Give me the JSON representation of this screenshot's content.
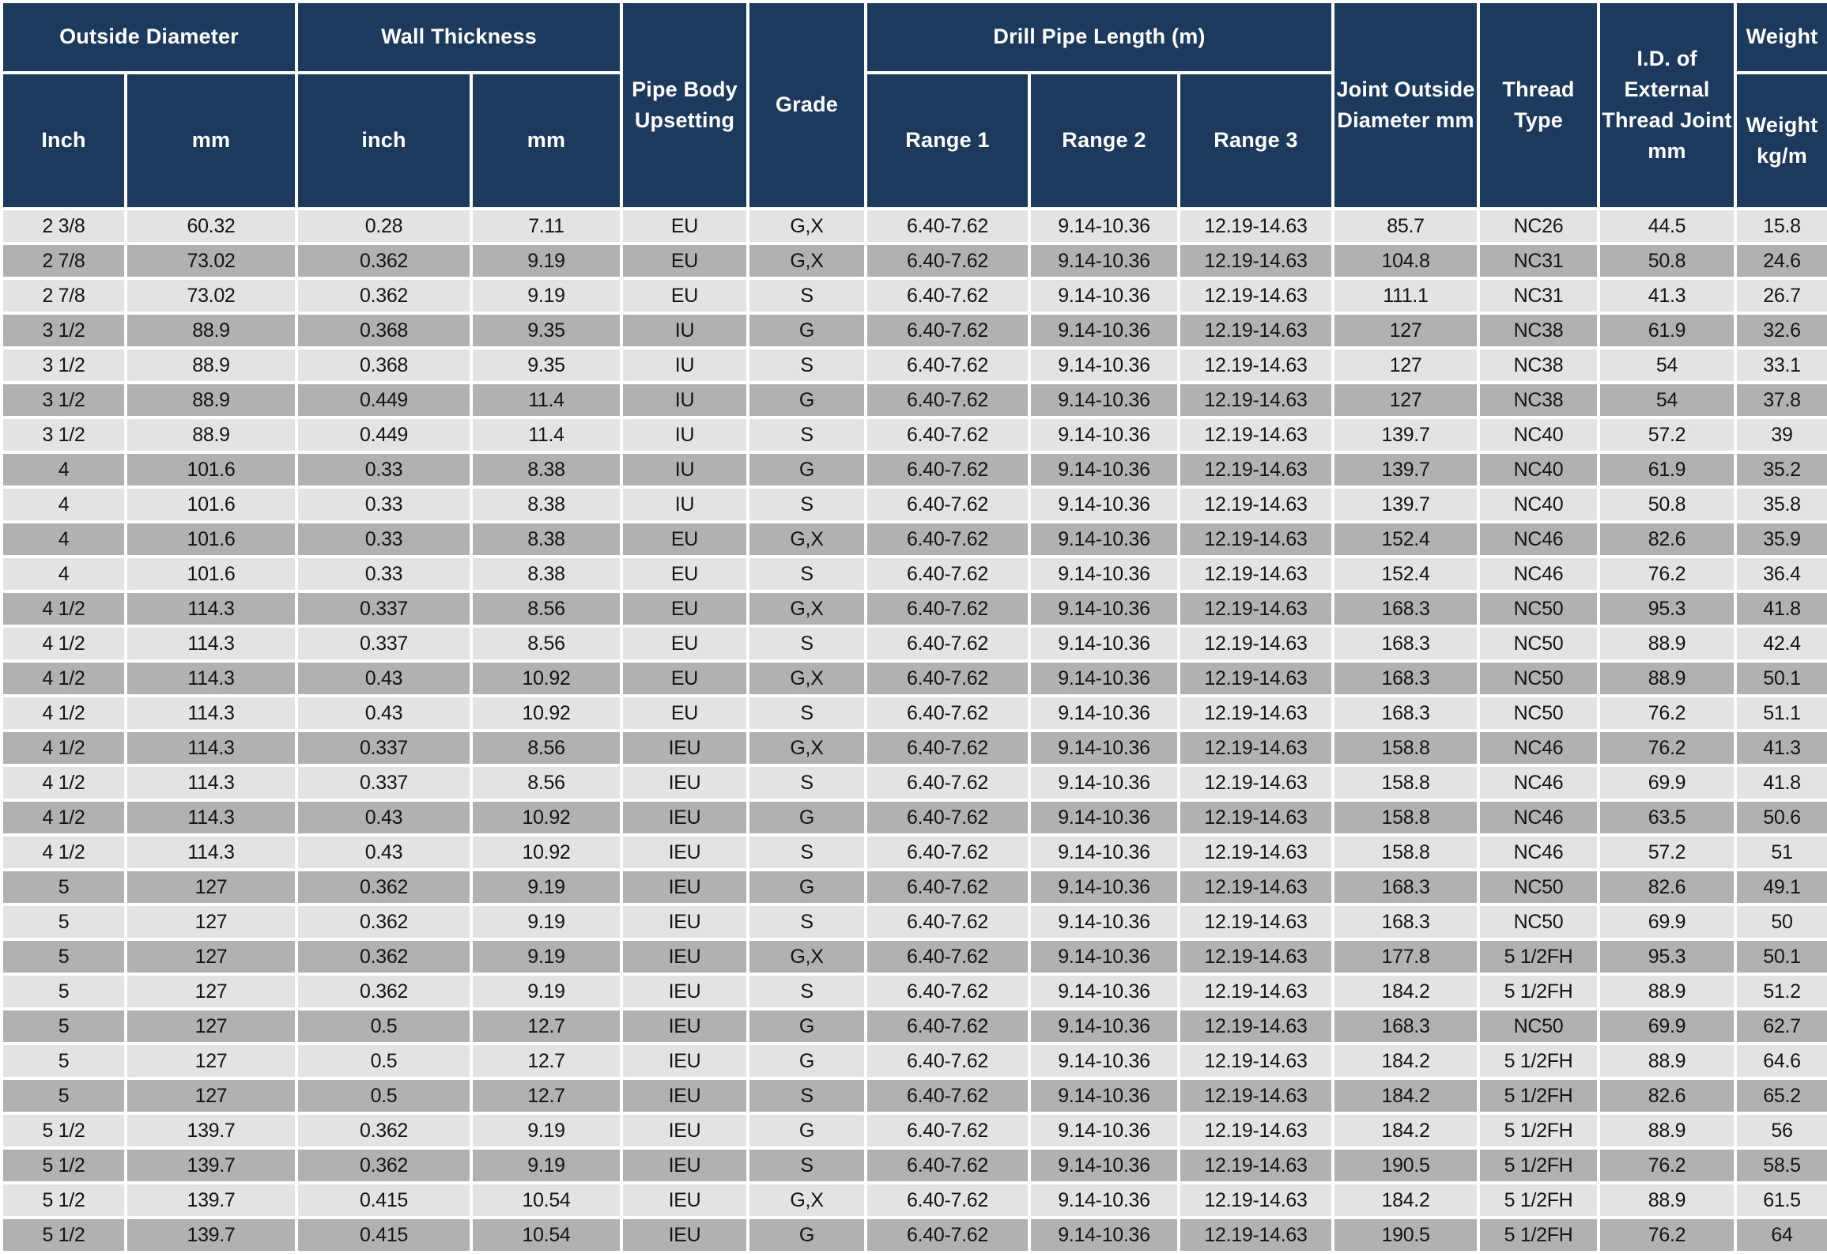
{
  "colors": {
    "header_bg": "#1d3a5c",
    "header_text": "#ffffff",
    "row_light": "#e3e3e3",
    "row_dark": "#b1b1b1",
    "gridline": "#ffffff",
    "cell_text": "#141414"
  },
  "table": {
    "header": {
      "outside_diameter": "Outside Diameter",
      "outside_diameter_sub": [
        "Inch",
        "mm"
      ],
      "wall_thickness": "Wall Thickness",
      "wall_thickness_sub": [
        "inch",
        "mm"
      ],
      "pipe_body_upsetting": "Pipe Body Upsetting",
      "grade": "Grade",
      "drill_pipe_length": "Drill Pipe Length (m)",
      "drill_pipe_length_sub": [
        "Range 1",
        "Range 2",
        "Range 3"
      ],
      "joint_outside_diameter": "Joint Outside Diameter mm",
      "thread_type": "Thread Type",
      "id_external_thread": "I.D. of External Thread Joint mm",
      "weight_group": "Weight",
      "weight_sub": "Weight kg/m"
    },
    "rows": [
      [
        "2 3/8",
        "60.32",
        "0.28",
        "7.11",
        "EU",
        "G,X",
        "6.40-7.62",
        "9.14-10.36",
        "12.19-14.63",
        "85.7",
        "NC26",
        "44.5",
        "15.8"
      ],
      [
        "2 7/8",
        "73.02",
        "0.362",
        "9.19",
        "EU",
        "G,X",
        "6.40-7.62",
        "9.14-10.36",
        "12.19-14.63",
        "104.8",
        "NC31",
        "50.8",
        "24.6"
      ],
      [
        "2 7/8",
        "73.02",
        "0.362",
        "9.19",
        "EU",
        "S",
        "6.40-7.62",
        "9.14-10.36",
        "12.19-14.63",
        "111.1",
        "NC31",
        "41.3",
        "26.7"
      ],
      [
        "3 1/2",
        "88.9",
        "0.368",
        "9.35",
        "IU",
        "G",
        "6.40-7.62",
        "9.14-10.36",
        "12.19-14.63",
        "127",
        "NC38",
        "61.9",
        "32.6"
      ],
      [
        "3 1/2",
        "88.9",
        "0.368",
        "9.35",
        "IU",
        "S",
        "6.40-7.62",
        "9.14-10.36",
        "12.19-14.63",
        "127",
        "NC38",
        "54",
        "33.1"
      ],
      [
        "3 1/2",
        "88.9",
        "0.449",
        "11.4",
        "IU",
        "G",
        "6.40-7.62",
        "9.14-10.36",
        "12.19-14.63",
        "127",
        "NC38",
        "54",
        "37.8"
      ],
      [
        "3 1/2",
        "88.9",
        "0.449",
        "11.4",
        "IU",
        "S",
        "6.40-7.62",
        "9.14-10.36",
        "12.19-14.63",
        "139.7",
        "NC40",
        "57.2",
        "39"
      ],
      [
        "4",
        "101.6",
        "0.33",
        "8.38",
        "IU",
        "G",
        "6.40-7.62",
        "9.14-10.36",
        "12.19-14.63",
        "139.7",
        "NC40",
        "61.9",
        "35.2"
      ],
      [
        "4",
        "101.6",
        "0.33",
        "8.38",
        "IU",
        "S",
        "6.40-7.62",
        "9.14-10.36",
        "12.19-14.63",
        "139.7",
        "NC40",
        "50.8",
        "35.8"
      ],
      [
        "4",
        "101.6",
        "0.33",
        "8.38",
        "EU",
        "G,X",
        "6.40-7.62",
        "9.14-10.36",
        "12.19-14.63",
        "152.4",
        "NC46",
        "82.6",
        "35.9"
      ],
      [
        "4",
        "101.6",
        "0.33",
        "8.38",
        "EU",
        "S",
        "6.40-7.62",
        "9.14-10.36",
        "12.19-14.63",
        "152.4",
        "NC46",
        "76.2",
        "36.4"
      ],
      [
        "4 1/2",
        "114.3",
        "0.337",
        "8.56",
        "EU",
        "G,X",
        "6.40-7.62",
        "9.14-10.36",
        "12.19-14.63",
        "168.3",
        "NC50",
        "95.3",
        "41.8"
      ],
      [
        "4 1/2",
        "114.3",
        "0.337",
        "8.56",
        "EU",
        "S",
        "6.40-7.62",
        "9.14-10.36",
        "12.19-14.63",
        "168.3",
        "NC50",
        "88.9",
        "42.4"
      ],
      [
        "4 1/2",
        "114.3",
        "0.43",
        "10.92",
        "EU",
        "G,X",
        "6.40-7.62",
        "9.14-10.36",
        "12.19-14.63",
        "168.3",
        "NC50",
        "88.9",
        "50.1"
      ],
      [
        "4 1/2",
        "114.3",
        "0.43",
        "10.92",
        "EU",
        "S",
        "6.40-7.62",
        "9.14-10.36",
        "12.19-14.63",
        "168.3",
        "NC50",
        "76.2",
        "51.1"
      ],
      [
        "4 1/2",
        "114.3",
        "0.337",
        "8.56",
        "IEU",
        "G,X",
        "6.40-7.62",
        "9.14-10.36",
        "12.19-14.63",
        "158.8",
        "NC46",
        "76.2",
        "41.3"
      ],
      [
        "4 1/2",
        "114.3",
        "0.337",
        "8.56",
        "IEU",
        "S",
        "6.40-7.62",
        "9.14-10.36",
        "12.19-14.63",
        "158.8",
        "NC46",
        "69.9",
        "41.8"
      ],
      [
        "4 1/2",
        "114.3",
        "0.43",
        "10.92",
        "IEU",
        "G",
        "6.40-7.62",
        "9.14-10.36",
        "12.19-14.63",
        "158.8",
        "NC46",
        "63.5",
        "50.6"
      ],
      [
        "4 1/2",
        "114.3",
        "0.43",
        "10.92",
        "IEU",
        "S",
        "6.40-7.62",
        "9.14-10.36",
        "12.19-14.63",
        "158.8",
        "NC46",
        "57.2",
        "51"
      ],
      [
        "5",
        "127",
        "0.362",
        "9.19",
        "IEU",
        "G",
        "6.40-7.62",
        "9.14-10.36",
        "12.19-14.63",
        "168.3",
        "NC50",
        "82.6",
        "49.1"
      ],
      [
        "5",
        "127",
        "0.362",
        "9.19",
        "IEU",
        "S",
        "6.40-7.62",
        "9.14-10.36",
        "12.19-14.63",
        "168.3",
        "NC50",
        "69.9",
        "50"
      ],
      [
        "5",
        "127",
        "0.362",
        "9.19",
        "IEU",
        "G,X",
        "6.40-7.62",
        "9.14-10.36",
        "12.19-14.63",
        "177.8",
        "5 1/2FH",
        "95.3",
        "50.1"
      ],
      [
        "5",
        "127",
        "0.362",
        "9.19",
        "IEU",
        "S",
        "6.40-7.62",
        "9.14-10.36",
        "12.19-14.63",
        "184.2",
        "5 1/2FH",
        "88.9",
        "51.2"
      ],
      [
        "5",
        "127",
        "0.5",
        "12.7",
        "IEU",
        "G",
        "6.40-7.62",
        "9.14-10.36",
        "12.19-14.63",
        "168.3",
        "NC50",
        "69.9",
        "62.7"
      ],
      [
        "5",
        "127",
        "0.5",
        "12.7",
        "IEU",
        "G",
        "6.40-7.62",
        "9.14-10.36",
        "12.19-14.63",
        "184.2",
        "5 1/2FH",
        "88.9",
        "64.6"
      ],
      [
        "5",
        "127",
        "0.5",
        "12.7",
        "IEU",
        "S",
        "6.40-7.62",
        "9.14-10.36",
        "12.19-14.63",
        "184.2",
        "5 1/2FH",
        "82.6",
        "65.2"
      ],
      [
        "5 1/2",
        "139.7",
        "0.362",
        "9.19",
        "IEU",
        "G",
        "6.40-7.62",
        "9.14-10.36",
        "12.19-14.63",
        "184.2",
        "5 1/2FH",
        "88.9",
        "56"
      ],
      [
        "5 1/2",
        "139.7",
        "0.362",
        "9.19",
        "IEU",
        "S",
        "6.40-7.62",
        "9.14-10.36",
        "12.19-14.63",
        "190.5",
        "5 1/2FH",
        "76.2",
        "58.5"
      ],
      [
        "5 1/2",
        "139.7",
        "0.415",
        "10.54",
        "IEU",
        "G,X",
        "6.40-7.62",
        "9.14-10.36",
        "12.19-14.63",
        "184.2",
        "5 1/2FH",
        "88.9",
        "61.5"
      ],
      [
        "5 1/2",
        "139.7",
        "0.415",
        "10.54",
        "IEU",
        "G",
        "6.40-7.62",
        "9.14-10.36",
        "12.19-14.63",
        "190.5",
        "5 1/2FH",
        "76.2",
        "64"
      ]
    ]
  }
}
